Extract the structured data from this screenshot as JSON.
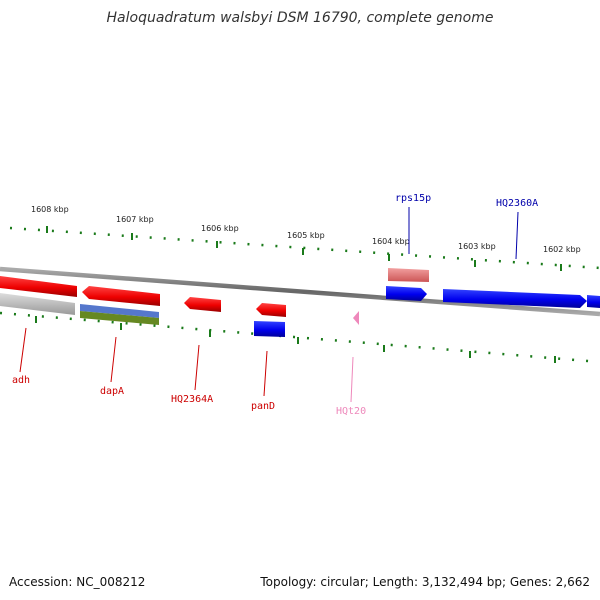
{
  "title": "Haloquadratum walsbyi DSM 16790, complete genome",
  "footer": {
    "accession": "Accession: NC_008212",
    "summary": "Topology: circular; Length: 3,132,494 bp; Genes: 2,662"
  },
  "ruler": [
    "1608 kbp",
    "1607 kbp",
    "1606 kbp",
    "1605 kbp",
    "1604 kbp",
    "1603 kbp",
    "1602 kbp"
  ],
  "gene_labels": [
    {
      "name": "adh",
      "color": "#cc0000"
    },
    {
      "name": "dapA",
      "color": "#cc0000"
    },
    {
      "name": "HQ2364A",
      "color": "#cc0000"
    },
    {
      "name": "panD",
      "color": "#cc0000"
    },
    {
      "name": "HQt20",
      "color": "#ee88bb"
    },
    {
      "name": "rps15p",
      "color": "#0000aa"
    },
    {
      "name": "HQ2360A",
      "color": "#0000aa"
    }
  ],
  "colors": {
    "reverse_strand": "#ee0000",
    "forward_strand": "#0000ee",
    "trna": "#ee88bb",
    "tick": "#1a7a1a",
    "backbone": "#777777"
  }
}
